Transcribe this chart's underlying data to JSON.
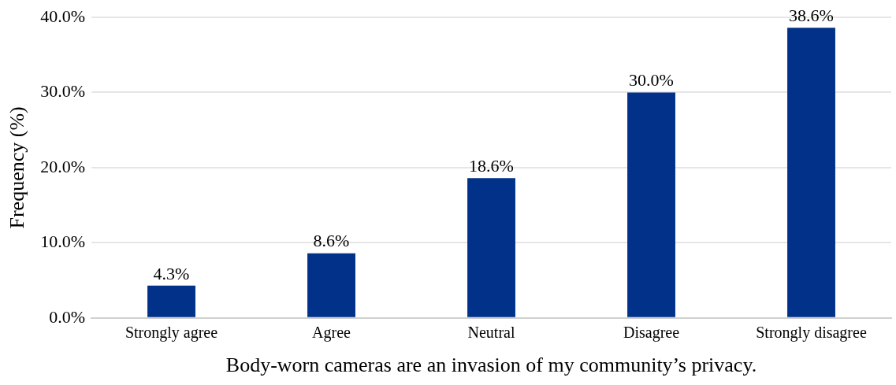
{
  "chart_data": {
    "type": "bar",
    "xlabel": "Body-worn cameras are an invasion of my community’s privacy.",
    "ylabel": "Frequency (%)",
    "categories": [
      "Strongly agree",
      "Agree",
      "Neutral",
      "Disagree",
      "Strongly disagree"
    ],
    "values": [
      4.3,
      8.6,
      18.6,
      30.0,
      38.6
    ],
    "value_labels": [
      "4.3%",
      "8.6%",
      "18.6%",
      "30.0%",
      "38.6%"
    ],
    "color": "#023189",
    "ylim": [
      0,
      40
    ],
    "yticks": [
      {
        "value": 0,
        "label": "0.0%"
      },
      {
        "value": 10,
        "label": "10.0%"
      },
      {
        "value": 20,
        "label": "20.0%"
      },
      {
        "value": 30,
        "label": "30.0%"
      },
      {
        "value": 40,
        "label": "40.0%"
      }
    ],
    "grid": "y",
    "legend": false
  }
}
